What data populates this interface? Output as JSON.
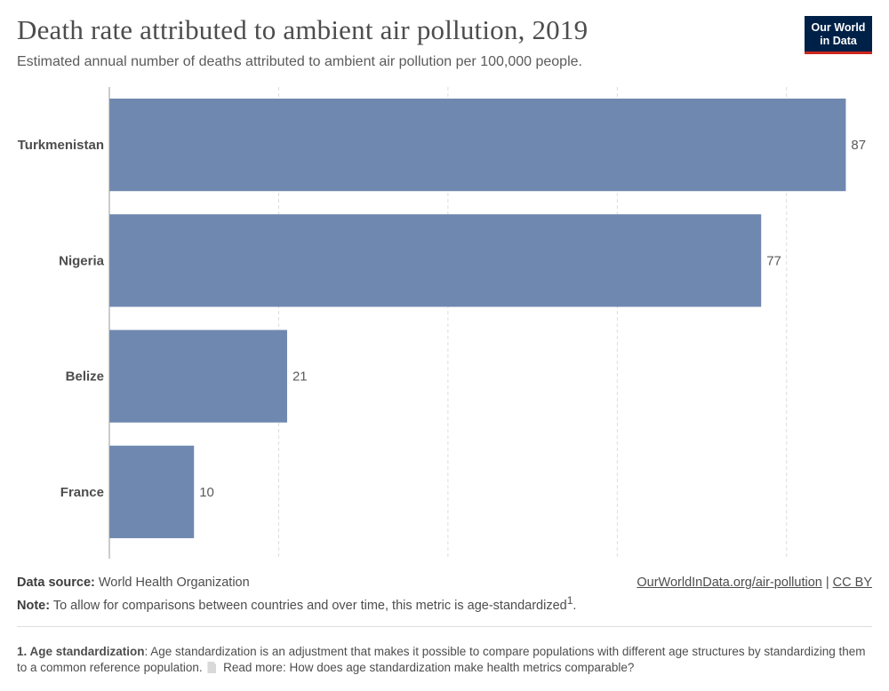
{
  "header": {
    "title": "Death rate attributed to ambient air pollution, 2019",
    "subtitle": "Estimated annual number of deaths attributed to ambient air pollution per 100,000 people.",
    "logo_line1": "Our World",
    "logo_line2": "in Data"
  },
  "colors": {
    "bar": "#6f88b0",
    "grid": "#dddddd",
    "axis": "#999999"
  },
  "chart_data": {
    "type": "bar",
    "orientation": "horizontal",
    "categories": [
      "Turkmenistan",
      "Nigeria",
      "Belize",
      "France"
    ],
    "values": [
      87,
      77,
      21,
      10
    ],
    "data_labels": [
      "87",
      "77",
      "21",
      "10"
    ],
    "xlim": [
      0,
      90
    ],
    "gridlines": [
      20,
      40,
      60,
      80
    ],
    "grid": true
  },
  "footer": {
    "source_label": "Data source:",
    "source_value": "World Health Organization",
    "note_label": "Note:",
    "note_value": "To allow for comparisons between countries and over time, this metric is age-standardized",
    "note_sup": "1",
    "credit_link": "OurWorldInData.org/air-pollution",
    "credit_sep": "|",
    "credit_license": "CC BY",
    "footnote_label": "1. Age standardization",
    "footnote_text": ": Age standardization is an adjustment that makes it possible to compare populations with different age structures by standardizing them to a common reference population.",
    "footnote_read_more": "Read more: How does age standardization make health metrics comparable?"
  }
}
